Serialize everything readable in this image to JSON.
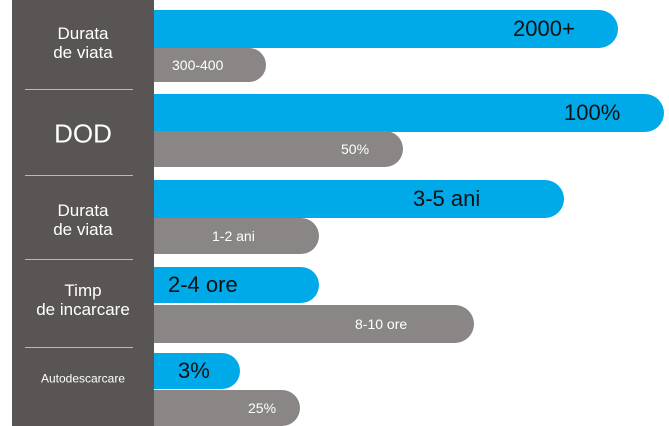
{
  "chart_data": {
    "type": "bar",
    "orientation": "horizontal",
    "categories": [
      "Durata\nde viata",
      "DOD",
      "Durata\nde viata",
      "Timp\nde incarcare",
      "Autodescarcare"
    ],
    "series": [
      {
        "values": [
          2000,
          100,
          4,
          3,
          3
        ],
        "labels": [
          "2000+",
          "100%",
          "3-5 ani",
          "2-4 ore",
          "3%"
        ]
      },
      {
        "values": [
          350,
          50,
          1.5,
          9,
          25
        ],
        "labels": [
          "300-400",
          "50%",
          "1-2 ani",
          "8-10 ore",
          "25%"
        ]
      }
    ],
    "grid": false,
    "legend": "none"
  },
  "colors": {
    "primary": "#00a9e8",
    "secondary": "#8a8686",
    "sidebar": "#5a5555",
    "divider": "#bdb8b8",
    "label_on_primary": "#111111",
    "label_on_secondary": "#ffffff",
    "category_text": "#ffffff"
  }
}
